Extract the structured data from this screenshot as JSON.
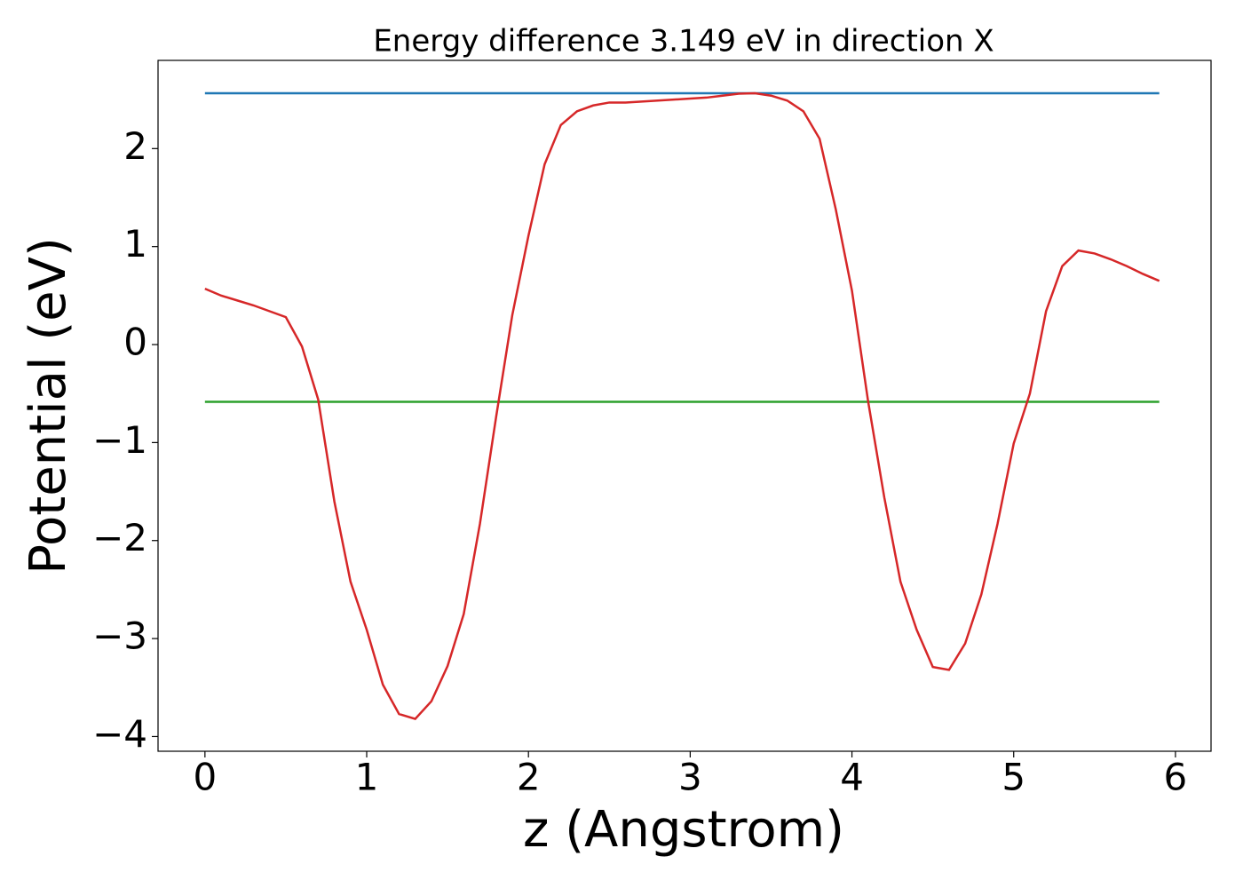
{
  "chart_data": {
    "type": "line",
    "title": "Energy difference 3.149 eV in direction X",
    "xlabel": "z (Angstrom)",
    "ylabel": "Potential (eV)",
    "xlim": [
      -0.29,
      6.22
    ],
    "ylim": [
      -4.15,
      2.9
    ],
    "xticks": [
      0,
      1,
      2,
      3,
      4,
      5,
      6
    ],
    "yticks": [
      {
        "value": -4,
        "label": "−4"
      },
      {
        "value": -3,
        "label": "−3"
      },
      {
        "value": -2,
        "label": "−2"
      },
      {
        "value": -1,
        "label": "−1"
      },
      0,
      1,
      2
    ],
    "grid": false,
    "series": [
      {
        "color": "#1f77b4",
        "x": [
          0,
          5.9
        ],
        "values": [
          2.565,
          2.565
        ]
      },
      {
        "color": "#2ca02c",
        "x": [
          0,
          5.9
        ],
        "values": [
          -0.584,
          -0.584
        ]
      },
      {
        "color": "#d62728",
        "x": [
          0,
          0.1,
          0.2,
          0.3,
          0.4,
          0.5,
          0.6,
          0.7,
          0.8,
          0.9,
          1.0,
          1.1,
          1.2,
          1.3,
          1.4,
          1.5,
          1.6,
          1.7,
          1.8,
          1.9,
          2.0,
          2.1,
          2.2,
          2.3,
          2.4,
          2.5,
          2.6,
          2.7,
          2.8,
          2.9,
          3.0,
          3.1,
          3.2,
          3.3,
          3.4,
          3.5,
          3.6,
          3.7,
          3.8,
          3.9,
          4.0,
          4.1,
          4.2,
          4.3,
          4.4,
          4.5,
          4.6,
          4.7,
          4.8,
          4.9,
          5.0,
          5.1,
          5.2,
          5.3,
          5.4,
          5.5,
          5.6,
          5.7,
          5.8,
          5.9
        ],
        "values": [
          0.57,
          0.5,
          0.45,
          0.4,
          0.34,
          0.28,
          -0.02,
          -0.56,
          -1.6,
          -2.42,
          -2.91,
          -3.47,
          -3.77,
          -3.82,
          -3.64,
          -3.28,
          -2.75,
          -1.83,
          -0.74,
          0.3,
          1.11,
          1.84,
          2.24,
          2.38,
          2.44,
          2.47,
          2.47,
          2.48,
          2.49,
          2.5,
          2.51,
          2.52,
          2.54,
          2.56,
          2.565,
          2.54,
          2.49,
          2.38,
          2.1,
          1.38,
          0.55,
          -0.58,
          -1.56,
          -2.42,
          -2.91,
          -3.29,
          -3.32,
          -3.05,
          -2.55,
          -1.83,
          -1.01,
          -0.5,
          0.34,
          0.8,
          0.96,
          0.93,
          0.87,
          0.8,
          0.72,
          0.65
        ]
      }
    ]
  }
}
